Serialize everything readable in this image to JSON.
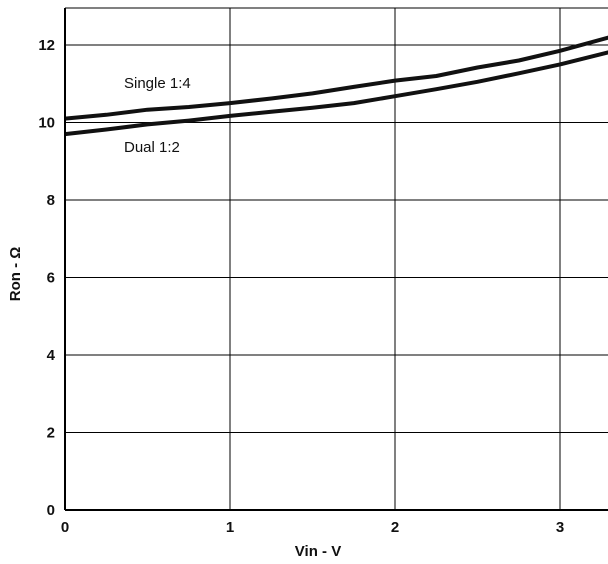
{
  "chart_data": {
    "type": "line",
    "title": "",
    "xlabel": "Vin - V",
    "ylabel": "Ron - Ω",
    "xlim": [
      0,
      3.3
    ],
    "ylim": [
      0,
      13
    ],
    "xticks": [
      0,
      1,
      2,
      3
    ],
    "yticks": [
      0,
      2,
      4,
      6,
      8,
      10,
      12
    ],
    "xtick_labels": [
      "0",
      "1",
      "2",
      "3"
    ],
    "ytick_labels": [
      "0",
      "2",
      "4",
      "6",
      "8",
      "10",
      "12"
    ],
    "grid": true,
    "series": [
      {
        "name": "Single 1:4",
        "x": [
          0,
          0.25,
          0.5,
          0.75,
          1.0,
          1.25,
          1.5,
          1.75,
          2.0,
          2.25,
          2.5,
          2.75,
          3.0,
          3.3
        ],
        "y": [
          10.1,
          10.2,
          10.33,
          10.4,
          10.5,
          10.62,
          10.75,
          10.92,
          11.08,
          11.2,
          11.42,
          11.6,
          11.85,
          12.2
        ]
      },
      {
        "name": "Dual 1:2",
        "x": [
          0,
          0.25,
          0.5,
          0.75,
          1.0,
          1.25,
          1.5,
          1.75,
          2.0,
          2.25,
          2.5,
          2.75,
          3.0,
          3.3
        ],
        "y": [
          9.7,
          9.82,
          9.95,
          10.05,
          10.17,
          10.28,
          10.38,
          10.5,
          10.68,
          10.86,
          11.05,
          11.27,
          11.5,
          11.82
        ]
      }
    ],
    "annotations": [
      {
        "text": "Single 1:4",
        "series": 0
      },
      {
        "text": "Dual 1:2",
        "series": 1
      }
    ],
    "colors": {
      "line": "#111111",
      "grid": "#000000",
      "background": "#ffffff"
    }
  }
}
